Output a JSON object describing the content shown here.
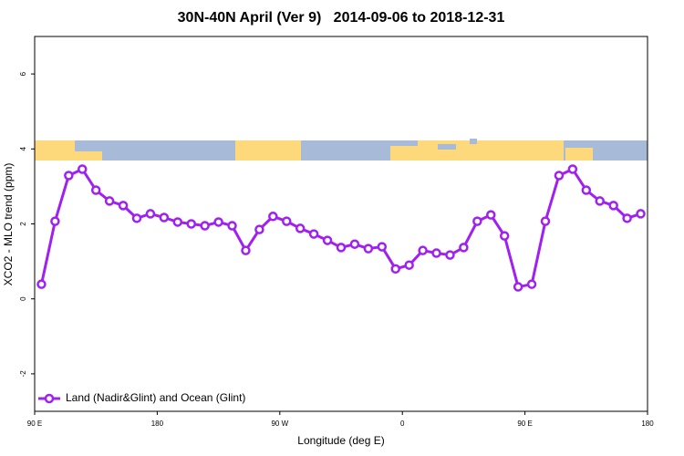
{
  "chart_data": {
    "type": "line",
    "title": "30N-40N April (Ver 9)   2014-09-06 to 2018-12-31",
    "x_label": "Longitude (deg E)",
    "y_label": "XCO2 - MLO trend (ppm)",
    "x": [
      95,
      105,
      115,
      125,
      135,
      145,
      155,
      165,
      175,
      185,
      195,
      205,
      215,
      225,
      235,
      245,
      255,
      265,
      275,
      285,
      295,
      305,
      315,
      325,
      335,
      345,
      355,
      365,
      375,
      385,
      395,
      405,
      415,
      425,
      435,
      445,
      455,
      465,
      475,
      485,
      495,
      505,
      515,
      525,
      535
    ],
    "series": [
      {
        "name": "Land (Nadir&Glint) and Ocean (Glint)",
        "color": "#a020f0",
        "values": [
          0.39,
          2.07,
          3.29,
          3.46,
          2.9,
          2.61,
          2.49,
          2.15,
          2.27,
          2.17,
          2.05,
          2.0,
          1.95,
          2.05,
          1.95,
          1.29,
          1.85,
          2.2,
          2.07,
          1.88,
          1.73,
          1.56,
          1.37,
          1.46,
          1.34,
          1.39,
          0.8,
          0.9,
          1.29,
          1.22,
          1.17,
          1.37,
          2.07,
          2.24,
          1.68,
          0.32,
          0.39,
          2.07,
          3.29,
          3.46,
          2.9,
          2.61,
          2.49,
          2.15,
          2.27
        ]
      }
    ],
    "xlim": [
      90,
      540
    ],
    "xticks": [
      {
        "value": 90,
        "label": "90 E"
      },
      {
        "value": 180,
        "label": "180"
      },
      {
        "value": 270,
        "label": "90 W"
      },
      {
        "value": 360,
        "label": "0"
      },
      {
        "value": 450,
        "label": "90 E"
      },
      {
        "value": 540,
        "label": "180"
      }
    ],
    "ylim": [
      -3,
      7
    ],
    "yticks": [
      -2,
      0,
      2,
      4,
      6
    ],
    "legend": "bottom-left"
  }
}
